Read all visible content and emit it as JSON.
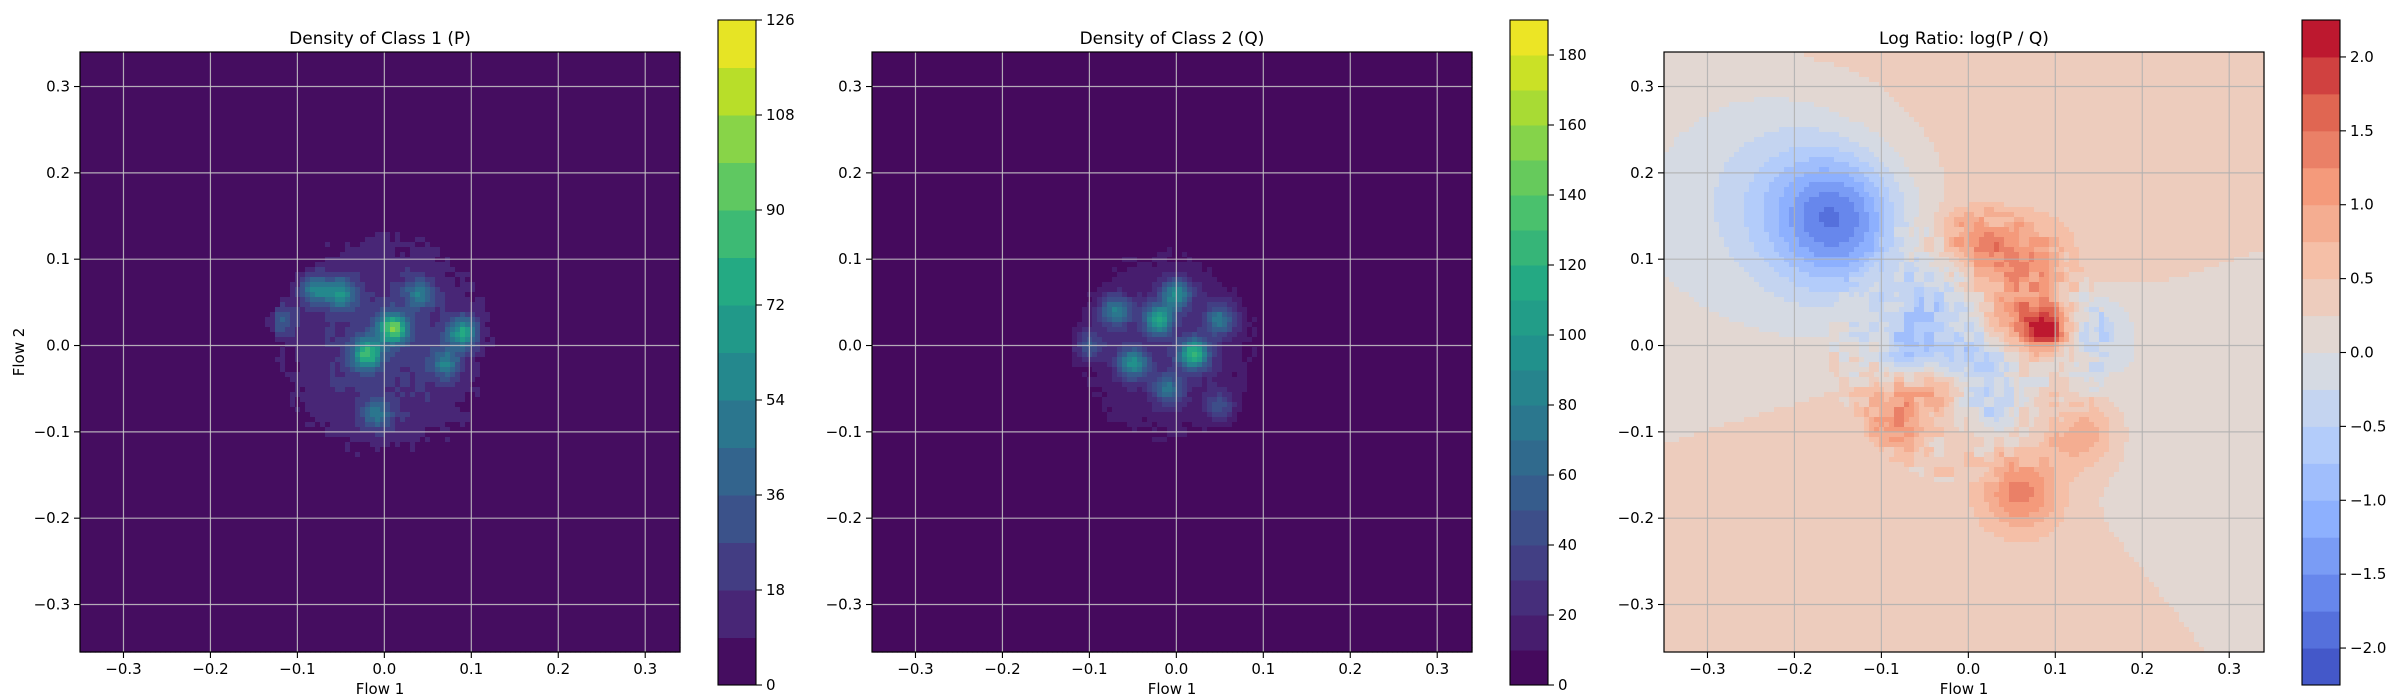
{
  "chart_data": [
    {
      "type": "heatmap",
      "title": "Density of Class 1 (P)",
      "xlabel": "Flow 1",
      "ylabel": "Flow 2",
      "xlim": [
        -0.35,
        0.34
      ],
      "ylim": [
        -0.355,
        0.34
      ],
      "xticks": [
        -0.3,
        -0.2,
        -0.1,
        0.0,
        0.1,
        0.2,
        0.3
      ],
      "yticks": [
        -0.3,
        -0.2,
        -0.1,
        0.0,
        0.1,
        0.2,
        0.3
      ],
      "xtick_labels": [
        "−0.3",
        "−0.2",
        "−0.1",
        "0.0",
        "0.1",
        "0.2",
        "0.3"
      ],
      "ytick_labels": [
        "−0.3",
        "−0.2",
        "−0.1",
        "0.0",
        "0.1",
        "0.2",
        "0.3"
      ],
      "grid": true,
      "colormap": "viridis",
      "colorbar": {
        "min": 0,
        "max": 126,
        "ticks": [
          0,
          18,
          36,
          54,
          72,
          90,
          108,
          126
        ],
        "tick_labels": [
          "0",
          "18",
          "36",
          "54",
          "72",
          "90",
          "108",
          "126"
        ],
        "levels": 14,
        "visible_top_fraction": 1.0
      },
      "density_region": {
        "center": [
          0.0,
          0.0
        ],
        "extent": [
          -0.14,
          0.14,
          -0.15,
          0.15
        ]
      },
      "peaks": [
        {
          "x": 0.01,
          "y": 0.02,
          "value": 80
        },
        {
          "x": -0.02,
          "y": -0.01,
          "value": 70
        },
        {
          "x": 0.09,
          "y": 0.015,
          "value": 60
        },
        {
          "x": -0.05,
          "y": 0.06,
          "value": 50
        },
        {
          "x": -0.08,
          "y": 0.065,
          "value": 45
        },
        {
          "x": 0.07,
          "y": -0.02,
          "value": 40
        },
        {
          "x": -0.01,
          "y": -0.08,
          "value": 35
        },
        {
          "x": 0.04,
          "y": 0.06,
          "value": 35
        },
        {
          "x": -0.12,
          "y": 0.03,
          "value": 30
        }
      ]
    },
    {
      "type": "heatmap",
      "title": "Density of Class 2 (Q)",
      "xlabel": "Flow 1",
      "ylabel": "",
      "xlim": [
        -0.35,
        0.34
      ],
      "ylim": [
        -0.355,
        0.34
      ],
      "xticks": [
        -0.3,
        -0.2,
        -0.1,
        0.0,
        0.1,
        0.2,
        0.3
      ],
      "yticks": [
        -0.3,
        -0.2,
        -0.1,
        0.0,
        0.1,
        0.2,
        0.3
      ],
      "xtick_labels": [
        "−0.3",
        "−0.2",
        "−0.1",
        "0.0",
        "0.1",
        "0.2",
        "0.3"
      ],
      "ytick_labels": [
        "−0.3",
        "−0.2",
        "−0.1",
        "0.0",
        "0.1",
        "0.2",
        "0.3"
      ],
      "grid": true,
      "colormap": "viridis",
      "colorbar": {
        "min": 0,
        "max": 190,
        "ticks": [
          0,
          20,
          40,
          60,
          80,
          100,
          120,
          140,
          160,
          180
        ],
        "tick_labels": [
          "0",
          "20",
          "40",
          "60",
          "80",
          "100",
          "120",
          "140",
          "160",
          "180"
        ],
        "levels": 19,
        "visible_top_fraction": 1.0
      },
      "density_region": {
        "center": [
          -0.01,
          0.0
        ],
        "extent": [
          -0.12,
          0.12,
          -0.13,
          0.13
        ]
      },
      "peaks": [
        {
          "x": 0.02,
          "y": -0.01,
          "value": 110
        },
        {
          "x": -0.02,
          "y": 0.03,
          "value": 90
        },
        {
          "x": -0.05,
          "y": -0.02,
          "value": 80
        },
        {
          "x": 0.0,
          "y": 0.06,
          "value": 75
        },
        {
          "x": -0.07,
          "y": 0.04,
          "value": 70
        },
        {
          "x": 0.05,
          "y": 0.03,
          "value": 60
        },
        {
          "x": -0.01,
          "y": -0.05,
          "value": 55
        },
        {
          "x": -0.1,
          "y": 0.0,
          "value": 40
        },
        {
          "x": 0.05,
          "y": -0.07,
          "value": 35
        }
      ]
    },
    {
      "type": "heatmap",
      "title": "Log Ratio: log(P / Q)",
      "xlabel": "Flow 1",
      "ylabel": "",
      "xlim": [
        -0.35,
        0.34
      ],
      "ylim": [
        -0.355,
        0.34
      ],
      "xticks": [
        -0.3,
        -0.2,
        -0.1,
        0.0,
        0.1,
        0.2,
        0.3
      ],
      "yticks": [
        -0.3,
        -0.2,
        -0.1,
        0.0,
        0.1,
        0.2,
        0.3
      ],
      "xtick_labels": [
        "−0.3",
        "−0.2",
        "−0.1",
        "0.0",
        "0.1",
        "0.2",
        "0.3"
      ],
      "ytick_labels": [
        "−0.3",
        "−0.2",
        "−0.1",
        "0.0",
        "0.1",
        "0.2",
        "0.3"
      ],
      "grid": true,
      "colormap": "coolwarm",
      "colorbar": {
        "min": -2.25,
        "max": 2.25,
        "ticks": [
          -2.0,
          -1.5,
          -1.0,
          -0.5,
          0.0,
          0.5,
          1.0,
          1.5,
          2.0
        ],
        "tick_labels": [
          "−2.0",
          "−1.5",
          "−1.0",
          "−0.5",
          "0.0",
          "0.5",
          "1.0",
          "1.5",
          "2.0"
        ],
        "levels": 18
      },
      "background_value": 0.35,
      "features": [
        {
          "x": -0.15,
          "y": 0.145,
          "value": -1.5,
          "spread": 0.05
        },
        {
          "x": -0.2,
          "y": 0.18,
          "value": -0.6,
          "spread": 0.08
        },
        {
          "x": 0.09,
          "y": 0.02,
          "value": 2.0,
          "spread": 0.02
        },
        {
          "x": 0.07,
          "y": 0.1,
          "value": 0.9,
          "spread": 0.03
        },
        {
          "x": 0.01,
          "y": 0.12,
          "value": 0.9,
          "spread": 0.025
        },
        {
          "x": 0.06,
          "y": -0.17,
          "value": 1.0,
          "spread": 0.03
        },
        {
          "x": -0.08,
          "y": -0.08,
          "value": 0.9,
          "spread": 0.025
        },
        {
          "x": 0.13,
          "y": -0.1,
          "value": 0.8,
          "spread": 0.03
        },
        {
          "x": -0.04,
          "y": 0.05,
          "value": -0.8,
          "spread": 0.03
        },
        {
          "x": 0.0,
          "y": -0.02,
          "value": -0.9,
          "spread": 0.03
        },
        {
          "x": -0.07,
          "y": 0.0,
          "value": -0.8,
          "spread": 0.025
        },
        {
          "x": 0.14,
          "y": 0.02,
          "value": -0.6,
          "spread": 0.03
        },
        {
          "x": 0.03,
          "y": -0.08,
          "value": -0.6,
          "spread": 0.025
        },
        {
          "x": -0.03,
          "y": -0.05,
          "value": 0.6,
          "spread": 0.02
        },
        {
          "x": 0.05,
          "y": 0.04,
          "value": 0.7,
          "spread": 0.02
        }
      ]
    }
  ]
}
